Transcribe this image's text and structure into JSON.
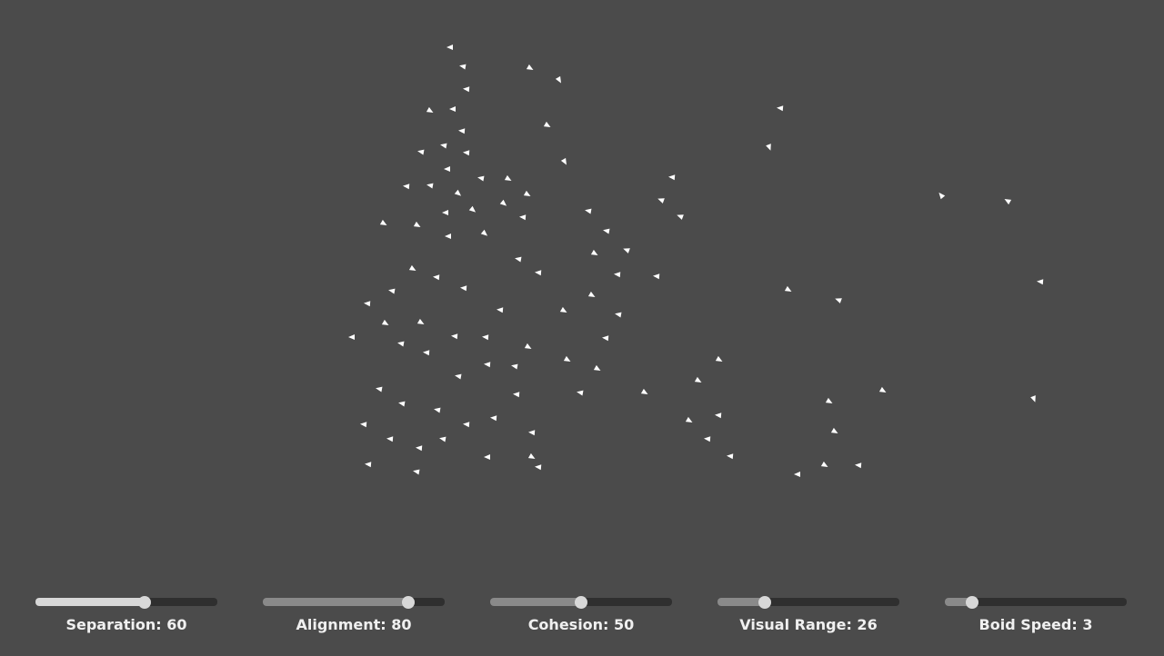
{
  "colors": {
    "background": "#4b4b4b",
    "boid": "#ffffff",
    "track": "#2f2f2f",
    "fill_active": "#d8d8d8",
    "fill_normal": "#8a8a8a",
    "thumb": "#d8d8d8"
  },
  "controls": [
    {
      "label": "Separation: 60",
      "value": 60,
      "max": 100,
      "active": true
    },
    {
      "label": "Alignment: 80",
      "value": 80,
      "max": 100,
      "active": false
    },
    {
      "label": "Cohesion: 50",
      "value": 50,
      "max": 100,
      "active": false
    },
    {
      "label": "Visual Range: 26",
      "value": 26,
      "max": 100,
      "active": false
    },
    {
      "label": "Boid Speed: 3",
      "value": 3,
      "max": 20,
      "active": false
    }
  ]
}
